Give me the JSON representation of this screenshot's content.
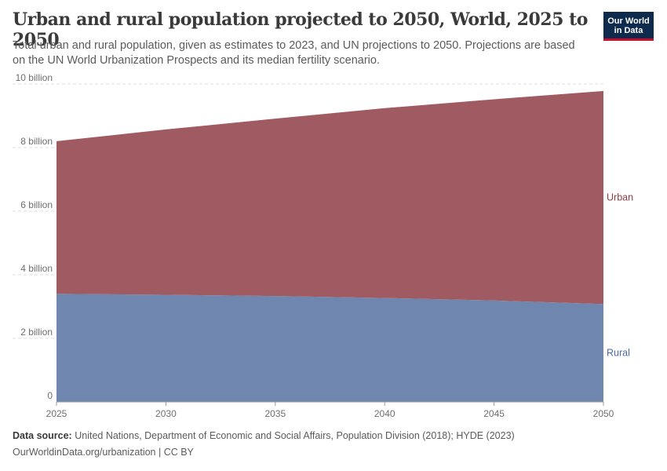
{
  "header": {
    "title": "Urban and rural population projected to 2050, World, 2025 to 2050",
    "subtitle": "Total urban and rural population, given as estimates to 2023, and UN projections to 2050. Projections are based on the UN World Urbanization Prospects and its median fertility scenario.",
    "logo_line1": "Our World",
    "logo_line2": "in Data"
  },
  "footer": {
    "source_label": "Data source:",
    "source_text": "United Nations, Department of Economic and Social Affairs, Population Division (2018); HYDE (2023)",
    "url_license": "OurWorldinData.org/urbanization | CC BY"
  },
  "chart_data": {
    "type": "area",
    "stacked": true,
    "x": [
      2025,
      2030,
      2035,
      2040,
      2045,
      2050
    ],
    "xlim": [
      2025,
      2050
    ],
    "ylim": [
      0,
      10000000000
    ],
    "y_ticks": [
      0,
      2000000000,
      4000000000,
      6000000000,
      8000000000,
      10000000000
    ],
    "y_tick_labels": [
      "0",
      "2 billion",
      "4 billion",
      "6 billion",
      "8 billion",
      "10 billion"
    ],
    "x_tick_labels": [
      "2025",
      "2030",
      "2035",
      "2040",
      "2045",
      "2050"
    ],
    "grid": "horizontal-dashed",
    "legend": "right-inline-labels",
    "series": [
      {
        "name": "Rural",
        "color": "#6f87ae",
        "label_color": "#4a69a3",
        "values": [
          3400000000,
          3370000000,
          3330000000,
          3270000000,
          3190000000,
          3080000000
        ]
      },
      {
        "name": "Urban",
        "color": "#a05a61",
        "label_color": "#8e3d44",
        "values": [
          4800000000,
          5200000000,
          5580000000,
          5970000000,
          6330000000,
          6700000000
        ]
      }
    ]
  }
}
